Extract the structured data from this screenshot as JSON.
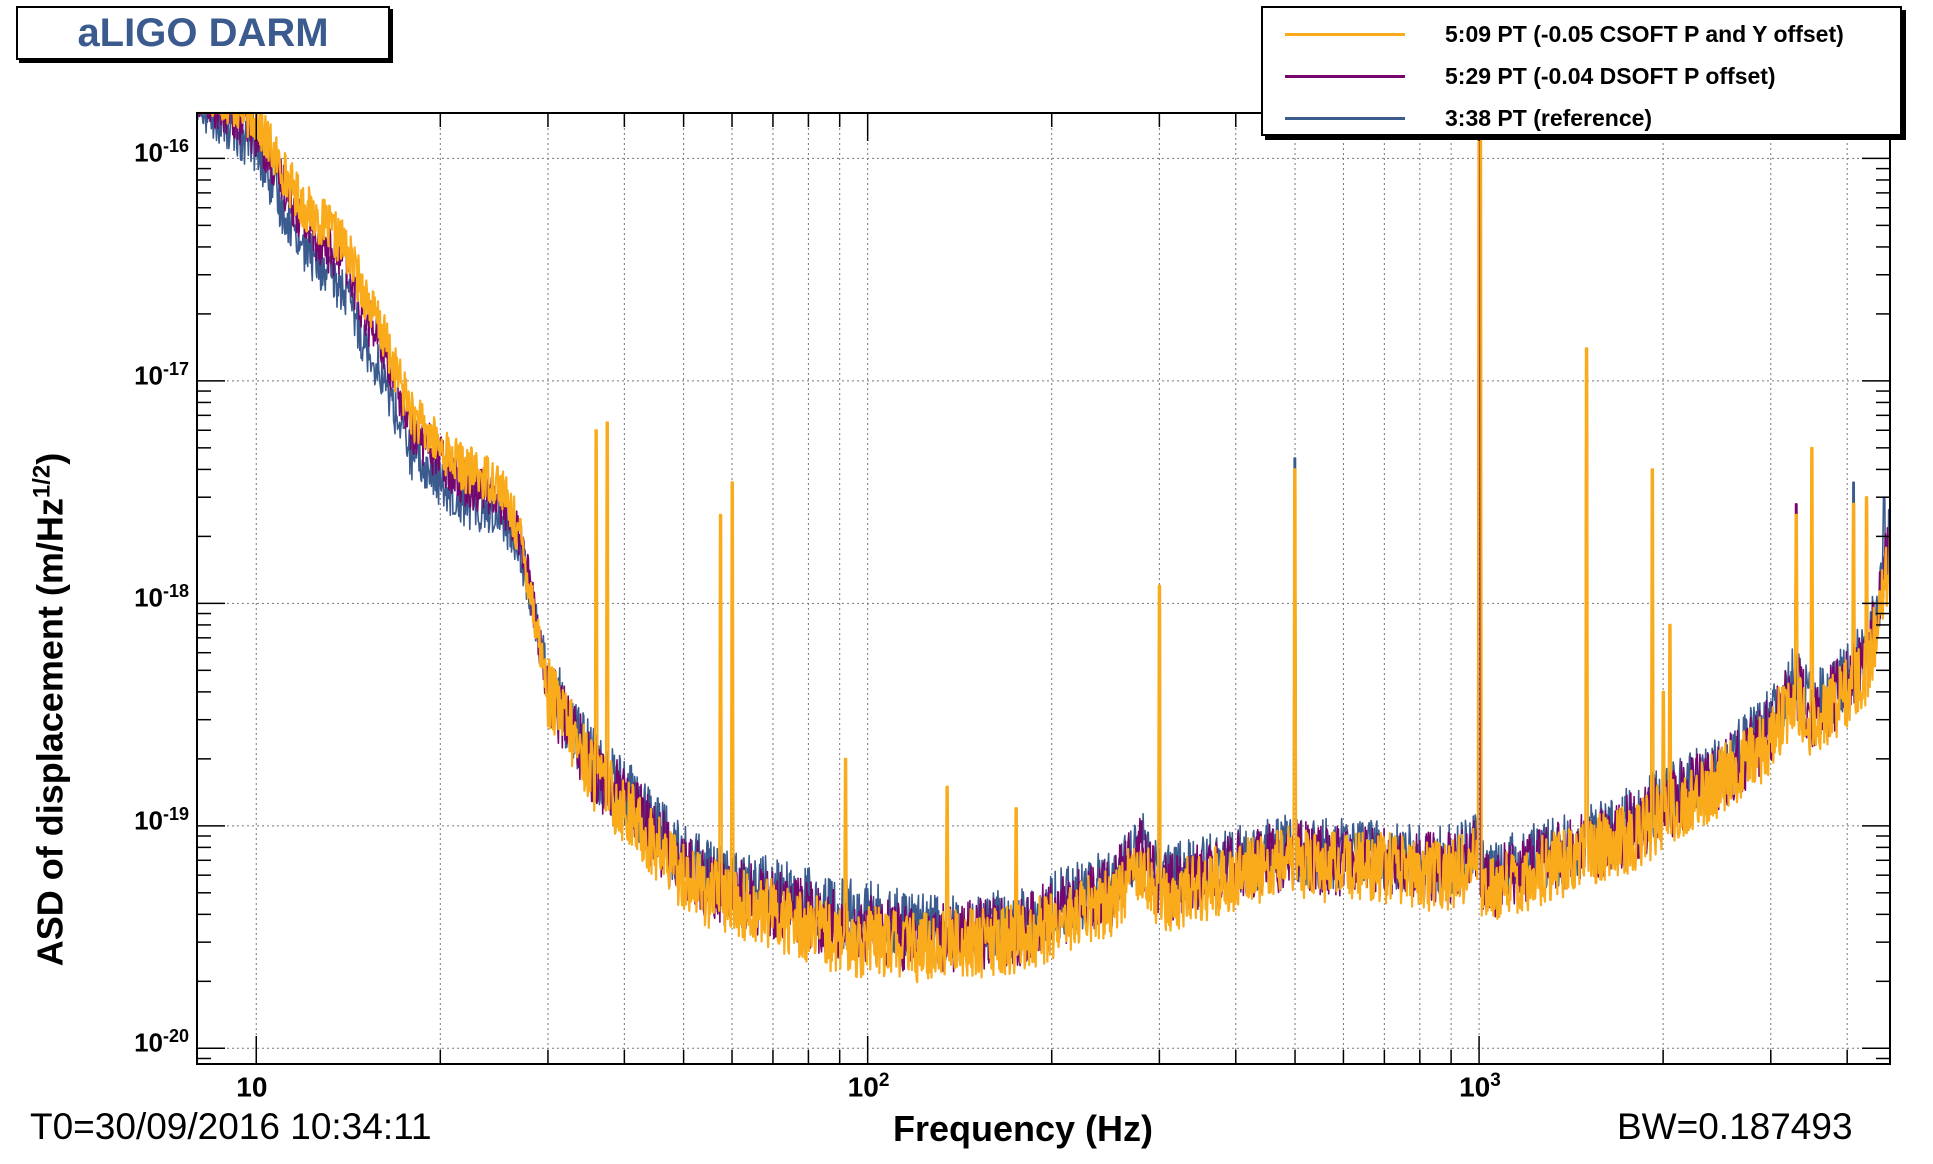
{
  "title": "aLIGO DARM",
  "footer": {
    "t0": "T0=30/09/2016 10:34:11",
    "bw": "BW=0.187493"
  },
  "colors": {
    "series1": "#f9ab1c",
    "series2": "#76066e",
    "series3": "#3b5b8f",
    "grid": "#777777"
  },
  "chart_data": {
    "type": "line",
    "xscale": "log",
    "yscale": "log",
    "xlim": [
      8,
      4700
    ],
    "ylim": [
      8.5e-21,
      1.6e-16
    ],
    "grid": true,
    "legend_position": "top-right",
    "xlabel": "Frequency (Hz)",
    "ylabel_base": "ASD of displacement (m/Hz",
    "ylabel_sup": "1/2",
    "ylabel_close": ")",
    "x_ticks": [
      {
        "value": 10,
        "base": "10",
        "sup": ""
      },
      {
        "value": 100,
        "base": "10",
        "sup": "2"
      },
      {
        "value": 1000,
        "base": "10",
        "sup": "3"
      }
    ],
    "y_ticks": [
      {
        "value": 1e-16,
        "base": "10",
        "sup": "-16"
      },
      {
        "value": 1e-17,
        "base": "10",
        "sup": "-17"
      },
      {
        "value": 1e-18,
        "base": "10",
        "sup": "-18"
      },
      {
        "value": 1e-19,
        "base": "10",
        "sup": "-19"
      },
      {
        "value": 1e-20,
        "base": "10",
        "sup": "-20"
      }
    ],
    "series": [
      {
        "name": "5:09 PT (-0.05 CSOFT P and Y offset)",
        "color": "#f9ab1c",
        "x": [
          8,
          10,
          11,
          12,
          13,
          14,
          15,
          16,
          18,
          20,
          22,
          25,
          27,
          28,
          30,
          33,
          36,
          40,
          45,
          50,
          55,
          60,
          70,
          80,
          90,
          100,
          110,
          120,
          140,
          160,
          180,
          200,
          220,
          250,
          280,
          300,
          330,
          400,
          450,
          500,
          550,
          600,
          700,
          800,
          900,
          1000,
          1010,
          1050,
          1100,
          1200,
          1400,
          1600,
          1800,
          2000,
          2200,
          2500,
          2800,
          3000,
          3300,
          3500,
          3800,
          4000,
          4300,
          4500,
          4700
        ],
        "y": [
          2.2e-16,
          1.5e-16,
          9e-17,
          6e-17,
          5e-17,
          4e-17,
          2.5e-17,
          1.7e-17,
          7e-18,
          5e-18,
          4e-18,
          3.5e-18,
          2e-18,
          1.2e-18,
          4e-19,
          2.5e-19,
          1.6e-19,
          1.2e-19,
          8e-20,
          6e-20,
          5e-20,
          4.5e-20,
          4e-20,
          3.5e-20,
          3e-20,
          3e-20,
          3e-20,
          2.8e-20,
          3e-20,
          3e-20,
          3.1e-20,
          3.6e-20,
          4e-20,
          4.5e-20,
          7e-20,
          4.5e-20,
          5e-20,
          6e-20,
          6.5e-20,
          7e-20,
          6.5e-20,
          6.5e-20,
          6.5e-20,
          6e-20,
          6e-20,
          7e-20,
          5e-20,
          5e-20,
          5.5e-20,
          6e-20,
          7e-20,
          8e-20,
          9e-20,
          1.1e-19,
          1.3e-19,
          1.6e-19,
          2e-19,
          2.5e-19,
          4e-19,
          2.7e-19,
          3.5e-19,
          4e-19,
          5e-19,
          8e-19,
          1.7e-18
        ],
        "peaks": [
          [
            36,
            6e-18
          ],
          [
            37.5,
            6.5e-18
          ],
          [
            57.5,
            2.5e-18
          ],
          [
            60,
            3.5e-18
          ],
          [
            92,
            2e-19
          ],
          [
            135,
            1.5e-19
          ],
          [
            175,
            1.2e-19
          ],
          [
            300,
            1.2e-18
          ],
          [
            500,
            4e-18
          ],
          [
            1000,
            2e-16
          ],
          [
            1005,
            1.2e-16
          ],
          [
            1500,
            1.4e-17
          ],
          [
            1920,
            4e-18
          ],
          [
            2000,
            4e-19
          ],
          [
            2050,
            8e-19
          ],
          [
            3300,
            2.5e-18
          ],
          [
            3500,
            5e-18
          ],
          [
            4100,
            2.8e-18
          ],
          [
            4300,
            3e-18
          ]
        ]
      },
      {
        "name": "5:29 PT (-0.04 DSOFT P offset)",
        "color": "#76066e",
        "x": [
          8,
          10,
          11,
          12,
          13,
          14,
          15,
          16,
          18,
          20,
          22,
          25,
          27,
          28,
          30,
          33,
          36,
          40,
          45,
          50,
          55,
          60,
          70,
          80,
          90,
          100,
          110,
          120,
          140,
          160,
          180,
          200,
          220,
          250,
          280,
          300,
          330,
          400,
          450,
          500,
          550,
          600,
          700,
          800,
          900,
          1000,
          1010,
          1050,
          1100,
          1200,
          1400,
          1600,
          1800,
          2000,
          2200,
          2500,
          2800,
          3000,
          3300,
          3500,
          3800,
          4000,
          4300,
          4500,
          4700
        ],
        "y": [
          2e-16,
          1.3e-16,
          8e-17,
          5e-17,
          4e-17,
          3.5e-17,
          2e-17,
          1.5e-17,
          6e-18,
          4.5e-18,
          3.5e-18,
          3e-18,
          2e-18,
          1.2e-18,
          4e-19,
          2.6e-19,
          1.7e-19,
          1.3e-19,
          9e-20,
          6.5e-20,
          5.5e-20,
          5e-20,
          4.5e-20,
          4e-20,
          3.5e-20,
          3.5e-20,
          3.3e-20,
          3e-20,
          3.2e-20,
          3.3e-20,
          3.4e-20,
          4e-20,
          4.5e-20,
          5e-20,
          8e-20,
          5e-20,
          5.5e-20,
          6.5e-20,
          7e-20,
          7.5e-20,
          7e-20,
          7e-20,
          7e-20,
          6.5e-20,
          6.5e-20,
          7.5e-20,
          5.5e-20,
          5.5e-20,
          6e-20,
          6.5e-20,
          7.5e-20,
          8.5e-20,
          1e-19,
          1.2e-19,
          1.4e-19,
          1.7e-19,
          2.2e-19,
          2.7e-19,
          4.3e-19,
          3e-19,
          3.8e-19,
          4.3e-19,
          5.5e-19,
          9e-19,
          2e-18
        ],
        "peaks": [
          [
            300,
            3e-19
          ],
          [
            500,
            4e-18
          ],
          [
            1000,
            1.5e-16
          ],
          [
            1500,
            1.2e-17
          ],
          [
            1920,
            3e-18
          ],
          [
            3300,
            2.8e-18
          ],
          [
            4300,
            3e-18
          ]
        ]
      },
      {
        "name": "3:38 PT (reference)",
        "color": "#3b5b8f",
        "x": [
          8,
          10,
          11,
          12,
          13,
          14,
          15,
          16,
          18,
          20,
          22,
          25,
          27,
          28,
          30,
          33,
          36,
          40,
          45,
          50,
          55,
          60,
          70,
          80,
          90,
          100,
          110,
          120,
          140,
          160,
          180,
          200,
          220,
          250,
          280,
          300,
          330,
          400,
          450,
          500,
          550,
          600,
          700,
          800,
          900,
          1000,
          1010,
          1050,
          1100,
          1200,
          1400,
          1600,
          1800,
          2000,
          2200,
          2500,
          2800,
          3000,
          3300,
          3500,
          3800,
          4000,
          4300,
          4500,
          4700
        ],
        "y": [
          1.8e-16,
          1.1e-16,
          6e-17,
          4e-17,
          3e-17,
          2.5e-17,
          1.5e-17,
          1.1e-17,
          4.5e-18,
          3.5e-18,
          2.8e-18,
          2.5e-18,
          1.8e-18,
          1.1e-18,
          4.5e-19,
          2.8e-19,
          1.8e-19,
          1.4e-19,
          1e-19,
          7e-20,
          6e-20,
          5.5e-20,
          5e-20,
          4.5e-20,
          4e-20,
          4e-20,
          3.7e-20,
          3.4e-20,
          3.5e-20,
          3.6e-20,
          3.7e-20,
          4.3e-20,
          4.8e-20,
          5.5e-20,
          8.5e-20,
          5.5e-20,
          6e-20,
          7e-20,
          7.5e-20,
          8e-20,
          7.5e-20,
          7.5e-20,
          7.5e-20,
          7e-20,
          7e-20,
          8e-20,
          6e-20,
          6e-20,
          6.5e-20,
          7e-20,
          8e-20,
          9e-20,
          1.1e-19,
          1.3e-19,
          1.5e-19,
          1.8e-19,
          2.4e-19,
          3e-19,
          4.6e-19,
          3.3e-19,
          4e-19,
          4.6e-19,
          6e-19,
          1e-18,
          2.2e-18
        ],
        "peaks": [
          [
            500,
            4.5e-18
          ],
          [
            1000,
            1.5e-16
          ],
          [
            1500,
            1.2e-17
          ],
          [
            4100,
            3.5e-18
          ],
          [
            4600,
            3e-18
          ]
        ]
      }
    ]
  }
}
